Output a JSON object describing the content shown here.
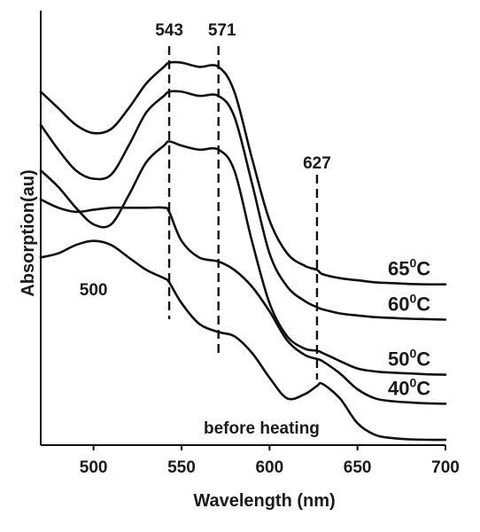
{
  "chart_data": {
    "type": "line",
    "xlabel": "Wavelength (nm)",
    "ylabel": "Absorption(au)",
    "xlim": [
      470,
      700
    ],
    "xticks": [
      500,
      550,
      600,
      650,
      700
    ],
    "grid": false,
    "x": [
      470,
      480,
      490,
      500,
      510,
      520,
      530,
      540,
      543,
      550,
      560,
      571,
      580,
      590,
      600,
      610,
      620,
      627,
      630,
      640,
      650,
      660,
      670,
      680,
      690,
      700
    ],
    "series": [
      {
        "name": "65⁰C",
        "label_main": "65",
        "label_sup": "0",
        "label_unit": "C",
        "values": [
          0.84,
          0.8,
          0.76,
          0.74,
          0.75,
          0.8,
          0.86,
          0.9,
          0.91,
          0.91,
          0.9,
          0.9,
          0.84,
          0.68,
          0.53,
          0.45,
          0.42,
          0.41,
          0.4,
          0.39,
          0.385,
          0.38,
          0.378,
          0.376,
          0.375,
          0.375
        ]
      },
      {
        "name": "60⁰C",
        "label_main": "60",
        "label_sup": "0",
        "label_unit": "C",
        "values": [
          0.76,
          0.7,
          0.65,
          0.63,
          0.64,
          0.71,
          0.79,
          0.83,
          0.84,
          0.84,
          0.83,
          0.83,
          0.78,
          0.62,
          0.45,
          0.37,
          0.335,
          0.32,
          0.315,
          0.305,
          0.3,
          0.296,
          0.294,
          0.292,
          0.291,
          0.29
        ]
      },
      {
        "name": "50⁰C",
        "label_main": "50",
        "label_sup": "0",
        "label_unit": "C",
        "values": [
          0.65,
          0.61,
          0.56,
          0.52,
          0.52,
          0.59,
          0.67,
          0.71,
          0.72,
          0.71,
          0.7,
          0.7,
          0.65,
          0.48,
          0.33,
          0.25,
          0.22,
          0.215,
          0.21,
          0.19,
          0.172,
          0.165,
          0.162,
          0.16,
          0.158,
          0.157
        ]
      },
      {
        "name": "40⁰C",
        "label_main": "40",
        "label_sup": "0",
        "label_unit": "C",
        "values": [
          0.58,
          0.56,
          0.55,
          0.555,
          0.56,
          0.56,
          0.56,
          0.56,
          0.55,
          0.48,
          0.44,
          0.43,
          0.41,
          0.37,
          0.31,
          0.24,
          0.205,
          0.195,
          0.19,
          0.16,
          0.122,
          0.1,
          0.093,
          0.09,
          0.088,
          0.087
        ]
      },
      {
        "name": "before heating",
        "label_main": "before heating",
        "label_sup": "",
        "label_unit": "",
        "values": [
          0.44,
          0.45,
          0.47,
          0.48,
          0.47,
          0.44,
          0.41,
          0.39,
          0.38,
          0.33,
          0.28,
          0.26,
          0.25,
          0.21,
          0.15,
          0.1,
          0.11,
          0.13,
          0.135,
          0.1,
          0.04,
          0.012,
          0.004,
          0.001,
          0.0,
          0.0
        ]
      }
    ],
    "annotations": [
      {
        "text": "543",
        "x": 543,
        "kind": "vline"
      },
      {
        "text": "571",
        "x": 571,
        "kind": "vline"
      },
      {
        "text": "627",
        "x": 627,
        "kind": "vline"
      },
      {
        "text": "500",
        "x": 500,
        "kind": "label"
      }
    ]
  }
}
